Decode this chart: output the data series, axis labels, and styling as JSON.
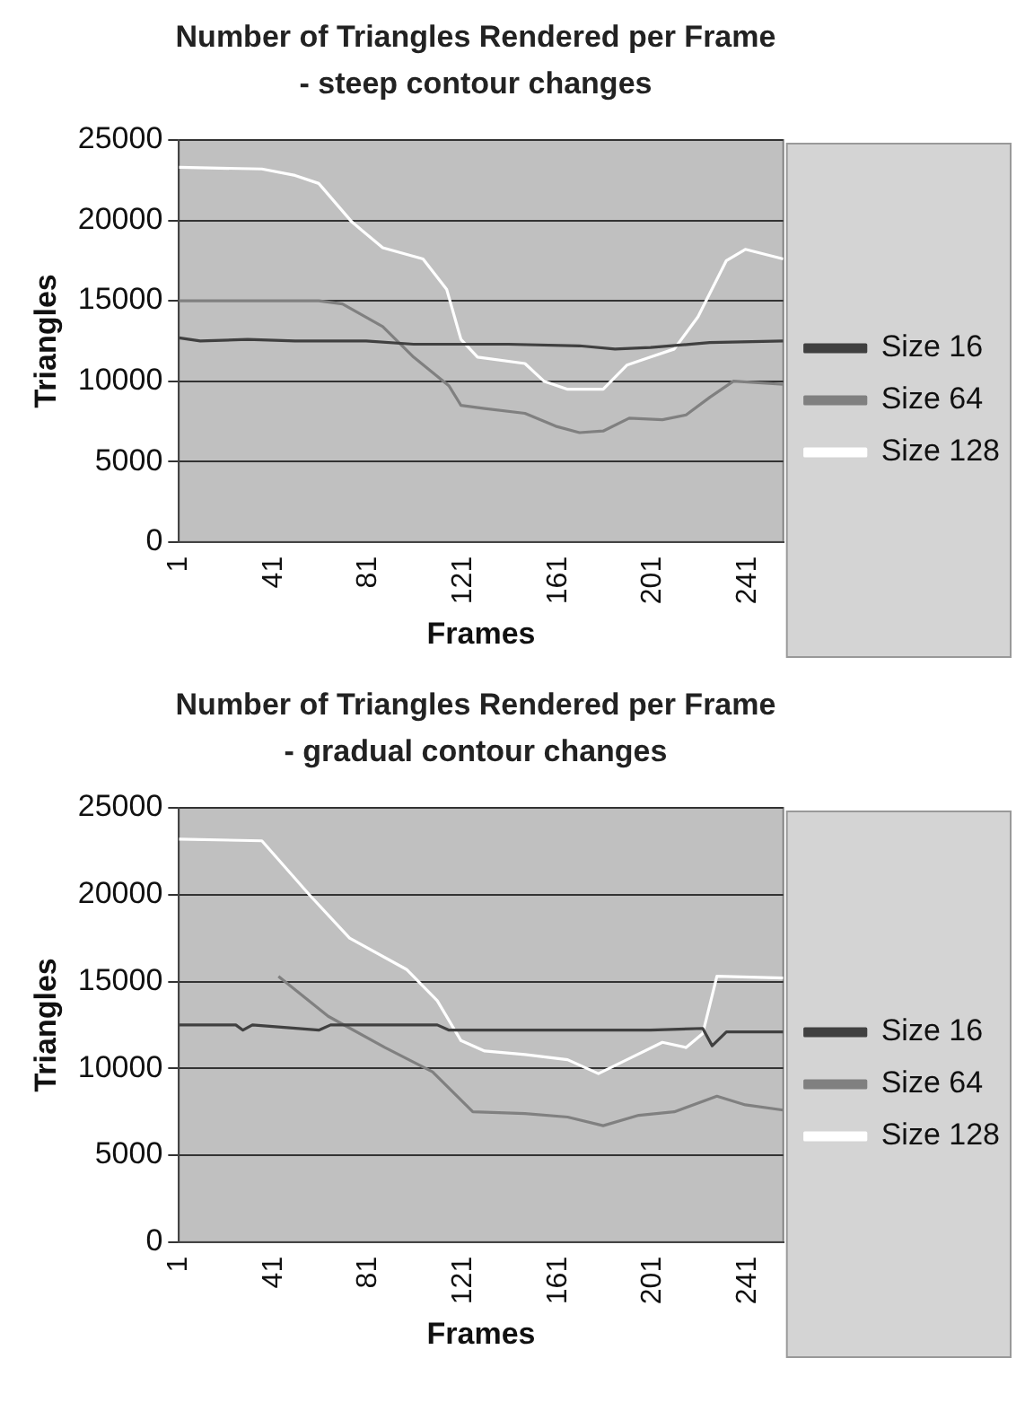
{
  "chart_data": [
    {
      "type": "line",
      "title": "Number of Triangles Rendered per Frame  - steep contour changes",
      "xlabel": "Frames",
      "ylabel": "Triangles",
      "xlim": [
        1,
        256
      ],
      "xticks": [
        1,
        41,
        81,
        121,
        161,
        201,
        241
      ],
      "ylim": [
        0,
        25000
      ],
      "yticks": [
        0,
        5000,
        10000,
        15000,
        20000,
        25000
      ],
      "grid": "y",
      "legend": "right",
      "marker": "none",
      "series": [
        {
          "name": "Size 16",
          "color": "#404040",
          "x": [
            1,
            10,
            30,
            50,
            80,
            100,
            140,
            170,
            185,
            200,
            225,
            256
          ],
          "values": [
            12700,
            12500,
            12600,
            12500,
            12500,
            12300,
            12300,
            12200,
            12000,
            12100,
            12400,
            12500
          ]
        },
        {
          "name": "Size 64",
          "color": "#808080",
          "x": [
            1,
            60,
            70,
            87,
            100,
            115,
            120,
            130,
            147,
            160,
            170,
            180,
            191,
            205,
            215,
            225,
            235,
            256
          ],
          "values": [
            15000,
            15000,
            14800,
            13400,
            11500,
            9700,
            8500,
            8300,
            8000,
            7200,
            6800,
            6900,
            7700,
            7600,
            7900,
            9000,
            10000,
            9800
          ]
        },
        {
          "name": "Size 128",
          "color": "#ffffff",
          "x": [
            1,
            36,
            50,
            60,
            74,
            87,
            104,
            114,
            120,
            127,
            147,
            155,
            165,
            180,
            190,
            200,
            210,
            220,
            232,
            240,
            256
          ],
          "values": [
            23300,
            23200,
            22800,
            22300,
            19900,
            18300,
            17600,
            15700,
            12600,
            11500,
            11100,
            10000,
            9500,
            9500,
            11000,
            11500,
            12000,
            14000,
            17500,
            18200,
            17600
          ]
        }
      ]
    },
    {
      "type": "line",
      "title": "Number of Triangles Rendered per Frame - gradual contour changes",
      "xlabel": "Frames",
      "ylabel": "Triangles",
      "xlim": [
        1,
        256
      ],
      "xticks": [
        1,
        41,
        81,
        121,
        161,
        201,
        241
      ],
      "ylim": [
        0,
        25000
      ],
      "yticks": [
        0,
        5000,
        10000,
        15000,
        20000,
        25000
      ],
      "grid": "y",
      "legend": "right",
      "marker": "none",
      "series": [
        {
          "name": "Size 16",
          "color": "#404040",
          "x": [
            1,
            25,
            28,
            32,
            60,
            65,
            110,
            115,
            200,
            222,
            226,
            232,
            256
          ],
          "values": [
            12500,
            12500,
            12200,
            12500,
            12200,
            12500,
            12500,
            12200,
            12200,
            12300,
            11300,
            12100,
            12100
          ]
        },
        {
          "name": "Size 64",
          "color": "#808080",
          "x": [
            43,
            64,
            88,
            108,
            125,
            147,
            165,
            180,
            195,
            210,
            228,
            240,
            256
          ],
          "values": [
            15300,
            13000,
            11200,
            9800,
            7500,
            7400,
            7200,
            6700,
            7300,
            7500,
            8400,
            7900,
            7600
          ]
        },
        {
          "name": "Size 128",
          "color": "#ffffff",
          "x": [
            1,
            36,
            56,
            73,
            97,
            110,
            120,
            130,
            147,
            165,
            178,
            190,
            205,
            215,
            222,
            228,
            256
          ],
          "values": [
            23200,
            23100,
            20000,
            17500,
            15700,
            13900,
            11600,
            11000,
            10800,
            10500,
            9700,
            10500,
            11500,
            11200,
            12000,
            15300,
            15200
          ]
        }
      ]
    }
  ]
}
